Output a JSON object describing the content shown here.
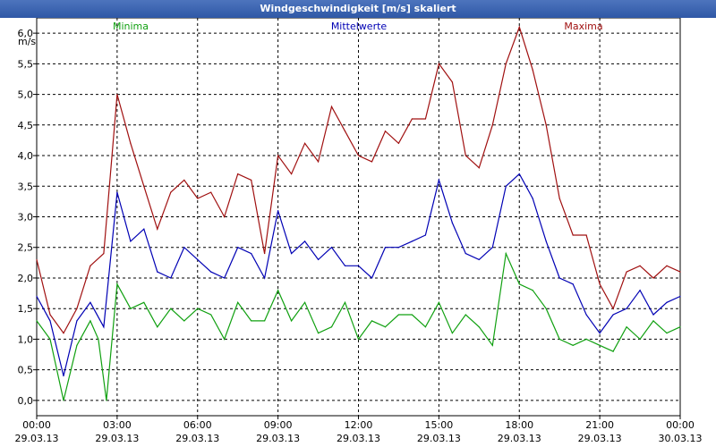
{
  "window": {
    "title": "Windgeschwindigkeit [m/s] skaliert"
  },
  "chart_data": {
    "type": "line",
    "title": "Windgeschwindigkeit [m/s] skaliert",
    "ylabel": "m/s",
    "ylim": [
      -0.25,
      6.25
    ],
    "yticks": [
      "0,0",
      "0,5",
      "1,0",
      "1,5",
      "2,0",
      "2,5",
      "3,0",
      "3,5",
      "4,0",
      "4,5",
      "5,0",
      "5,5",
      "6,0"
    ],
    "ytick_values": [
      0,
      0.5,
      1,
      1.5,
      2,
      2.5,
      3,
      3.5,
      4,
      4.5,
      5,
      5.5,
      6
    ],
    "xlim": [
      0,
      24
    ],
    "xticks": [
      {
        "time": "00:00",
        "date": "29.03.13"
      },
      {
        "time": "03:00",
        "date": "29.03.13"
      },
      {
        "time": "06:00",
        "date": "29.03.13"
      },
      {
        "time": "09:00",
        "date": "29.03.13"
      },
      {
        "time": "12:00",
        "date": "29.03.13"
      },
      {
        "time": "15:00",
        "date": "29.03.13"
      },
      {
        "time": "18:00",
        "date": "29.03.13"
      },
      {
        "time": "21:00",
        "date": "29.03.13"
      },
      {
        "time": "00:00",
        "date": "30.03.13"
      }
    ],
    "xtick_values": [
      0,
      3,
      6,
      9,
      12,
      15,
      18,
      21,
      24
    ],
    "series": [
      {
        "name": "Minima",
        "color": "#10a010",
        "x": [
          0.0,
          0.5,
          1.0,
          1.5,
          2.0,
          2.3,
          2.6,
          3.0,
          3.5,
          4.0,
          4.5,
          5.0,
          5.5,
          6.0,
          6.5,
          7.0,
          7.5,
          8.0,
          8.5,
          9.0,
          9.5,
          10.0,
          10.5,
          11.0,
          11.5,
          12.0,
          12.5,
          13.0,
          13.5,
          14.0,
          14.5,
          15.0,
          15.5,
          16.0,
          16.5,
          17.0,
          17.5,
          18.0,
          18.5,
          19.0,
          19.5,
          20.0,
          20.5,
          21.0,
          21.5,
          22.0,
          22.5,
          23.0,
          23.5,
          24.0
        ],
        "values": [
          1.3,
          1.0,
          0.0,
          0.9,
          1.3,
          1.0,
          0.0,
          1.9,
          1.5,
          1.6,
          1.2,
          1.5,
          1.3,
          1.5,
          1.4,
          1.0,
          1.6,
          1.3,
          1.3,
          1.8,
          1.3,
          1.6,
          1.1,
          1.2,
          1.6,
          1.0,
          1.3,
          1.2,
          1.4,
          1.4,
          1.2,
          1.6,
          1.1,
          1.4,
          1.2,
          0.9,
          2.4,
          1.9,
          1.8,
          1.5,
          1.0,
          0.9,
          1.0,
          0.9,
          0.8,
          1.2,
          1.0,
          1.3,
          1.1,
          1.2
        ]
      },
      {
        "name": "Mittelwerte",
        "color": "#0000b4",
        "x": [
          0.0,
          0.5,
          1.0,
          1.5,
          2.0,
          2.5,
          3.0,
          3.5,
          4.0,
          4.5,
          5.0,
          5.5,
          6.0,
          6.5,
          7.0,
          7.5,
          8.0,
          8.5,
          9.0,
          9.5,
          10.0,
          10.5,
          11.0,
          11.5,
          12.0,
          12.5,
          13.0,
          13.5,
          14.0,
          14.5,
          15.0,
          15.5,
          16.0,
          16.5,
          17.0,
          17.5,
          18.0,
          18.5,
          19.0,
          19.5,
          20.0,
          20.5,
          21.0,
          21.5,
          22.0,
          22.5,
          23.0,
          23.5,
          24.0
        ],
        "values": [
          1.7,
          1.3,
          0.4,
          1.3,
          1.6,
          1.2,
          3.4,
          2.6,
          2.8,
          2.1,
          2.0,
          2.5,
          2.3,
          2.1,
          2.0,
          2.5,
          2.4,
          2.0,
          3.1,
          2.4,
          2.6,
          2.3,
          2.5,
          2.2,
          2.2,
          2.0,
          2.5,
          2.5,
          2.6,
          2.7,
          3.6,
          2.9,
          2.4,
          2.3,
          2.5,
          3.5,
          3.7,
          3.3,
          2.6,
          2.0,
          1.9,
          1.4,
          1.1,
          1.4,
          1.5,
          1.8,
          1.4,
          1.6,
          1.7
        ]
      },
      {
        "name": "Maxima",
        "color": "#a01010",
        "x": [
          0.0,
          0.5,
          1.0,
          1.5,
          2.0,
          2.5,
          3.0,
          3.5,
          4.0,
          4.5,
          5.0,
          5.5,
          6.0,
          6.5,
          7.0,
          7.5,
          8.0,
          8.5,
          9.0,
          9.5,
          10.0,
          10.5,
          11.0,
          11.5,
          12.0,
          12.5,
          13.0,
          13.5,
          14.0,
          14.5,
          15.0,
          15.5,
          16.0,
          16.5,
          17.0,
          17.5,
          18.0,
          18.5,
          19.0,
          19.5,
          20.0,
          20.5,
          21.0,
          21.5,
          22.0,
          22.5,
          23.0,
          23.5,
          24.0
        ],
        "values": [
          2.3,
          1.4,
          1.1,
          1.5,
          2.2,
          2.4,
          5.0,
          4.2,
          3.5,
          2.8,
          3.4,
          3.6,
          3.3,
          3.4,
          3.0,
          3.7,
          3.6,
          2.4,
          4.0,
          3.7,
          4.2,
          3.9,
          4.8,
          4.4,
          4.0,
          3.9,
          4.4,
          4.2,
          4.6,
          4.6,
          5.5,
          5.2,
          4.0,
          3.8,
          4.5,
          5.5,
          6.1,
          5.4,
          4.5,
          3.3,
          2.7,
          2.7,
          1.9,
          1.5,
          2.1,
          2.2,
          2.0,
          2.2,
          2.1
        ]
      }
    ]
  }
}
